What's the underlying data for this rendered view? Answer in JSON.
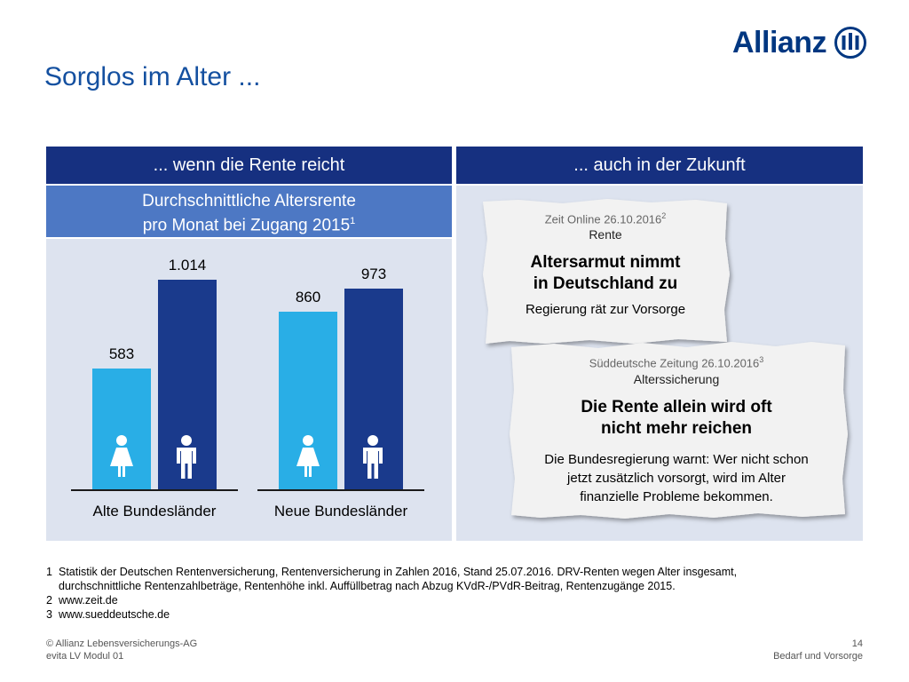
{
  "brand": {
    "name": "Allianz",
    "color": "#003781"
  },
  "title": "Sorglos im Alter ...",
  "columns": {
    "left_header": "... wenn die Rente reicht",
    "right_header": "... auch in der Zukunft"
  },
  "chart_box": {
    "subtitle_line1": "Durchschnittliche Altersrente",
    "subtitle_line2": "pro Monat bei Zugang 2015",
    "subtitle_footnote": "1"
  },
  "chart_data": {
    "type": "bar",
    "categories": [
      "Alte Bundesländer",
      "Neue Bundesländer"
    ],
    "series": [
      {
        "name": "",
        "values": [
          583,
          860
        ],
        "color": "#29aee6",
        "icon": "woman-icon"
      },
      {
        "name": "",
        "values": [
          1014,
          973
        ],
        "color": "#1a3a8c",
        "icon": "man-icon"
      }
    ],
    "data_labels": [
      [
        "583",
        "1.014"
      ],
      [
        "860",
        "973"
      ]
    ],
    "ylim": [
      0,
      1110
    ],
    "title": "Durchschnittliche Altersrente pro Monat bei Zugang 2015",
    "xlabel": "",
    "ylabel": "",
    "grid": false
  },
  "clippings": [
    {
      "source": "Zeit Online 26.10.2016",
      "source_footnote": "2",
      "category": "Rente",
      "headline_line1": "Altersarmut nimmt",
      "headline_line2": "in Deutschland zu",
      "text": "Regierung rät zur Vorsorge"
    },
    {
      "source": "Süddeutsche Zeitung 26.10.2016",
      "source_footnote": "3",
      "category": "Alterssicherung",
      "headline_line1": "Die Rente allein wird oft",
      "headline_line2": "nicht mehr reichen",
      "text_line1": "Die Bundesregierung warnt: Wer nicht schon",
      "text_line2": "jetzt zusätzlich vorsorgt, wird im Alter",
      "text_line3": "finanzielle Probleme bekommen."
    }
  ],
  "footnotes": [
    {
      "num": "1",
      "text": "Statistik der Deutschen Rentenversicherung, Rentenversicherung in Zahlen 2016, Stand 25.07.2016. DRV-Renten wegen Alter insgesamt,"
    },
    {
      "num": "",
      "text": "durchschnittliche Rentenzahlbeträge, Rentenhöhe inkl. Auffüllbetrag nach Abzug  KVdR-/PVdR-Beitrag, Rentenzugänge 2015."
    },
    {
      "num": "2",
      "text": "www.zeit.de"
    },
    {
      "num": "3",
      "text": "www.sueddeutsche.de"
    }
  ],
  "footer": {
    "copyright": "© Allianz Lebensversicherungs-AG",
    "module": "evita LV Modul 01",
    "page_number": "14",
    "section": "Bedarf und Vorsorge"
  }
}
